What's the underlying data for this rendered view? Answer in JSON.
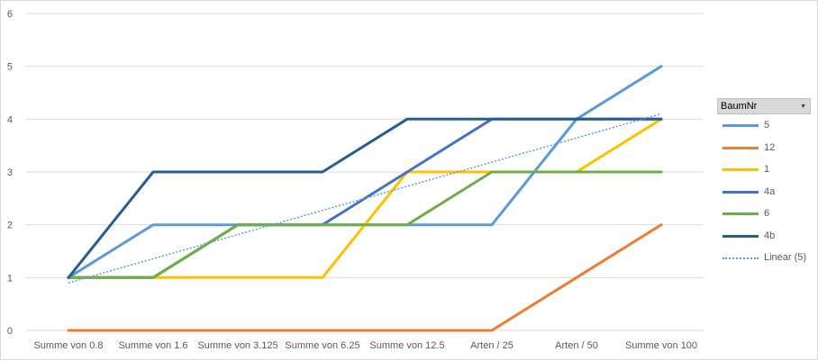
{
  "chart_data": {
    "type": "line",
    "categories": [
      "Summe von 0.8",
      "Summe von 1.6",
      "Summe von 3.125",
      "Summe von 6.25",
      "Summe von 12.5",
      "Arten / 25",
      "Arten / 50",
      "Summe von 100"
    ],
    "ylim": [
      0,
      6
    ],
    "yticks": [
      0,
      1,
      2,
      3,
      4,
      5,
      6
    ],
    "grid": true,
    "legend_title": "BaumNr",
    "legend_placement": "right",
    "series": [
      {
        "name": "5",
        "color": "#5b9bd5",
        "values": [
          1,
          2,
          2,
          2,
          2,
          2,
          4,
          5
        ]
      },
      {
        "name": "12",
        "color": "#ed7d31",
        "values": [
          0,
          0,
          0,
          0,
          0,
          0,
          1,
          2
        ]
      },
      {
        "name": "1",
        "color": "#ffc000",
        "values": [
          1,
          1,
          1,
          1,
          3,
          3,
          3,
          4
        ]
      },
      {
        "name": "4a",
        "color": "#4472c4",
        "values": [
          1,
          1,
          2,
          2,
          3,
          4,
          4,
          4
        ]
      },
      {
        "name": "6",
        "color": "#70ad47",
        "values": [
          1,
          1,
          2,
          2,
          2,
          3,
          3,
          3
        ]
      },
      {
        "name": "4b",
        "color": "#255e91",
        "values": [
          1,
          3,
          3,
          3,
          4,
          4,
          4,
          4
        ]
      }
    ],
    "trendline": {
      "name": "Linear (5)",
      "color": "#5b9bd5",
      "style": "dotted",
      "start": 0.9,
      "end": 4.1
    }
  }
}
